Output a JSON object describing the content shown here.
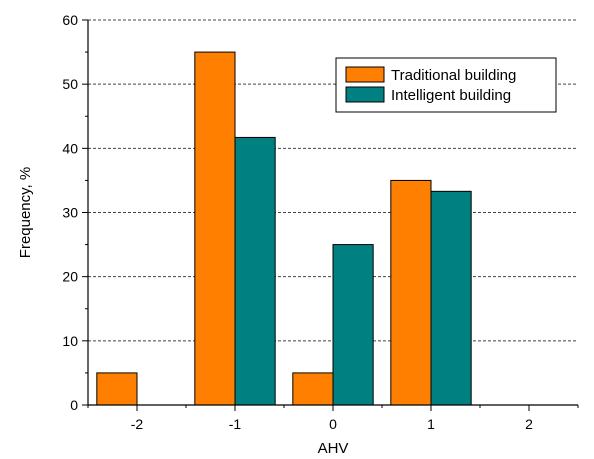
{
  "chart_data": {
    "type": "bar",
    "title": "",
    "xlabel": "AHV",
    "ylabel": "Frequency, %",
    "categories": [
      "-2",
      "-1",
      "0",
      "1",
      "2"
    ],
    "x": [
      -2,
      -1,
      0,
      1,
      2
    ],
    "xlim": [
      -2.5,
      2.5
    ],
    "ylim": [
      0,
      60
    ],
    "y_major_ticks": [
      0,
      10,
      20,
      30,
      40,
      50,
      60
    ],
    "y_minor_step": 5,
    "grid": "horizontal-dashed",
    "legend_position": "top-right",
    "series": [
      {
        "name": "Traditional building",
        "color": "#ff8000",
        "values": [
          5,
          55,
          5,
          35,
          0
        ]
      },
      {
        "name": "Intelligent building",
        "color": "#008080",
        "values": [
          0,
          41.7,
          25,
          33.3,
          0
        ]
      }
    ]
  }
}
